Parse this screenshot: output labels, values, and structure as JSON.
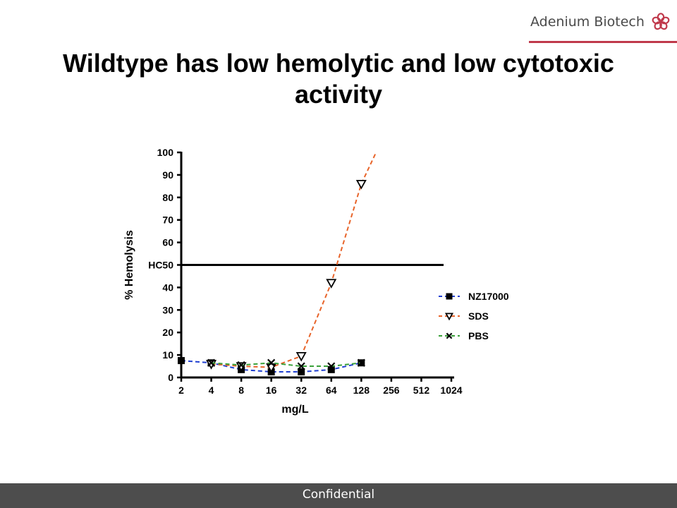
{
  "brand": {
    "name": "Adenium Biotech",
    "accent_color": "#c0394b",
    "icon": "flower-icon"
  },
  "slide": {
    "title_line1": "Wildtype has low hemolytic and low cytotoxic",
    "title_line2": "activity"
  },
  "footer": {
    "text": "Confidential"
  },
  "chart_data": {
    "type": "line",
    "title": "",
    "xlabel": "mg/L",
    "ylabel": "% Hemolysis",
    "x_scale": "log2",
    "x_ticks": [
      2,
      4,
      8,
      16,
      32,
      64,
      128,
      256,
      512,
      1024
    ],
    "x_tick_labels": [
      "2",
      "4",
      "8",
      "16",
      "32",
      "64",
      "128",
      "256",
      "512",
      "1024"
    ],
    "ylim": [
      0,
      100
    ],
    "y_ticks": [
      0,
      10,
      20,
      30,
      40,
      50,
      60,
      70,
      80,
      90,
      100
    ],
    "y_tick_labels": [
      "0",
      "10",
      "20",
      "30",
      "40",
      "HC50",
      "60",
      "70",
      "80",
      "90",
      "100"
    ],
    "grid": false,
    "legend_position": "right",
    "reference_line": {
      "label": "HC50",
      "y": 50
    },
    "series": [
      {
        "name": "NZ17000",
        "marker": "square",
        "color": "#1f3fd1",
        "line_style": "dashed",
        "x": [
          2,
          4,
          8,
          16,
          32,
          64,
          128
        ],
        "y": [
          7.5,
          6.5,
          3.5,
          2.5,
          2.5,
          3.5,
          6.5
        ]
      },
      {
        "name": "SDS",
        "marker": "triangle-down",
        "color": "#e8642a",
        "line_style": "dashed",
        "x": [
          4,
          8,
          16,
          32,
          64,
          128,
          180
        ],
        "y": [
          6.0,
          5.0,
          4.5,
          9.5,
          42.0,
          86.0,
          100.0
        ]
      },
      {
        "name": "PBS",
        "marker": "x",
        "color": "#3aa13a",
        "line_style": "dashed",
        "x": [
          4,
          8,
          16,
          32,
          64,
          128
        ],
        "y": [
          6.5,
          5.5,
          6.5,
          5.0,
          5.0,
          6.5
        ]
      }
    ]
  }
}
